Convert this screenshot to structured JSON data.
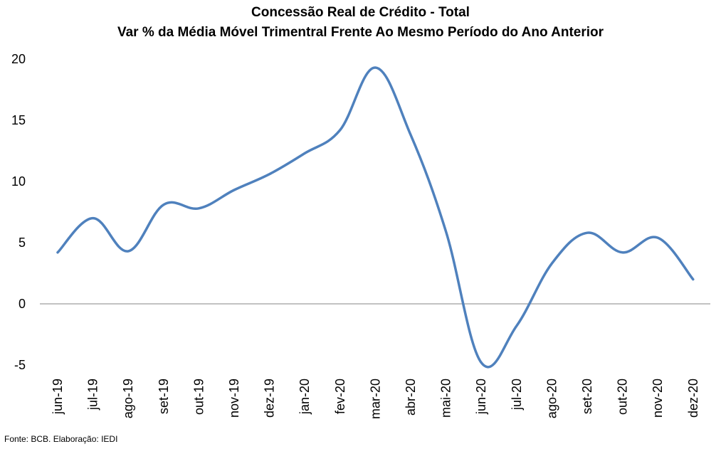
{
  "chart_data": {
    "type": "line",
    "title": "Concessão Real de Crédito - Total",
    "subtitle": "Var % da Média Móvel Trimentral Frente Ao Mesmo Período do Ano Anterior",
    "xlabel": "",
    "ylabel": "",
    "categories": [
      "jun-19",
      "jul-19",
      "ago-19",
      "set-19",
      "out-19",
      "nov-19",
      "dez-19",
      "jan-20",
      "fev-20",
      "mar-20",
      "abr-20",
      "mai-20",
      "jun-20",
      "jul-20",
      "ago-20",
      "set-20",
      "out-20",
      "nov-20",
      "dez-20"
    ],
    "series": [
      {
        "name": "",
        "values": [
          4.2,
          7.0,
          4.3,
          8.1,
          7.8,
          9.3,
          10.6,
          12.3,
          14.2,
          19.3,
          13.8,
          5.9,
          -4.8,
          -1.8,
          3.3,
          5.8,
          4.2,
          5.4,
          2.0
        ]
      }
    ],
    "ylim": [
      -5,
      20
    ],
    "yticks": [
      -5,
      0,
      5,
      10,
      15,
      20
    ],
    "grid": false,
    "colors": {
      "line": "#4f81bd",
      "zero_line": "#868686"
    }
  },
  "source": "Fonte:  BCB. Elaboração: IEDI"
}
